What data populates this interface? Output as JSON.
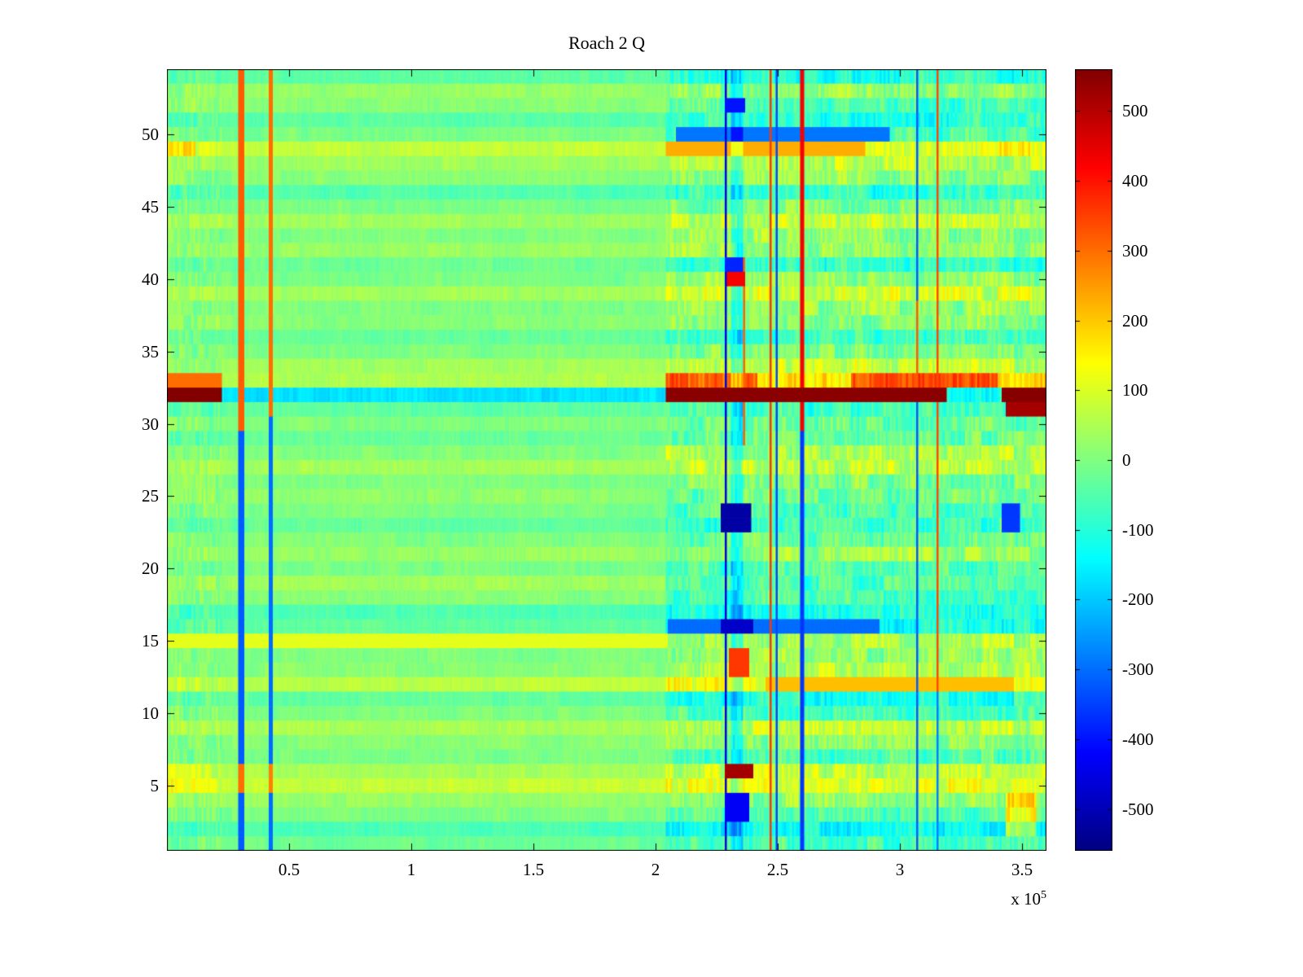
{
  "chart_data": {
    "type": "heatmap",
    "title": "Roach 2 Q",
    "colormap": "jet",
    "clim": [
      -560,
      560
    ],
    "x_range": [
      0,
      3.6
    ],
    "y_range": [
      0.5,
      54.5
    ],
    "x_units_multiplier": "1e5",
    "x_offset": {
      "prefix": "x 10",
      "exponent": "5"
    },
    "x_tick_labels": [
      "0.5",
      "1",
      "1.5",
      "2",
      "2.5",
      "3",
      "3.5"
    ],
    "x_tick_values": [
      0.5,
      1,
      1.5,
      2,
      2.5,
      3,
      3.5
    ],
    "y_tick_labels": [
      "5",
      "10",
      "15",
      "20",
      "25",
      "30",
      "35",
      "40",
      "45",
      "50"
    ],
    "y_tick_values": [
      5,
      10,
      15,
      20,
      25,
      30,
      35,
      40,
      45,
      50
    ],
    "colorbar": {
      "tick_labels": [
        "500",
        "400",
        "300",
        "200",
        "100",
        "0",
        "-100",
        "-200",
        "-300",
        "-400",
        "-500"
      ],
      "tick_values": [
        500,
        400,
        300,
        200,
        100,
        0,
        -100,
        -200,
        -300,
        -400,
        -500
      ]
    },
    "rows": 54,
    "grid_cols": 432,
    "background_noise": {
      "cell": 16,
      "streak": 12
    },
    "left_edge_region": {
      "x_end": 0.225,
      "cell_noise": 40,
      "streak_noise": 20
    },
    "right_region": {
      "x_start": 2.04,
      "cell_noise": 48,
      "streak_noise": 42,
      "row_delta": [
        -40,
        -70,
        -50,
        0,
        35,
        30,
        -40,
        0,
        20,
        -55,
        -70,
        60,
        50,
        20,
        -60,
        -80,
        -50,
        -70,
        -90,
        -55,
        0,
        -20,
        -40,
        -55,
        -35,
        0,
        20,
        40,
        0,
        -20,
        -35,
        60,
        120,
        40,
        0,
        -40,
        0,
        20,
        40,
        25,
        -55,
        0,
        20,
        40,
        0,
        -40,
        0,
        30,
        60,
        -60,
        -55,
        -70,
        0,
        -55
      ]
    },
    "row_profile": [
      -20,
      -60,
      0,
      25,
      75,
      45,
      -5,
      10,
      45,
      0,
      -30,
      65,
      10,
      0,
      105,
      -35,
      -55,
      5,
      35,
      -5,
      25,
      0,
      -30,
      -5,
      20,
      0,
      40,
      5,
      -25,
      0,
      -35,
      -170,
      55,
      35,
      0,
      -30,
      10,
      0,
      40,
      -5,
      -20,
      25,
      0,
      35,
      -5,
      -50,
      10,
      35,
      75,
      -5,
      -40,
      10,
      25,
      -40
    ],
    "bands": [
      {
        "rows": [
          15,
          15
        ],
        "x": [
          0,
          2.05
        ],
        "mode": "set",
        "value": 110
      },
      {
        "rows": [
          16,
          16
        ],
        "x": [
          2.05,
          2.92
        ],
        "mode": "set",
        "value": -300
      },
      {
        "rows": [
          12,
          12
        ],
        "x": [
          2.45,
          3.47
        ],
        "mode": "set",
        "value": 210
      },
      {
        "rows": [
          49,
          49
        ],
        "x": [
          2.04,
          2.86
        ],
        "mode": "set",
        "value": 230
      },
      {
        "rows": [
          50,
          50
        ],
        "x": [
          2.08,
          2.96
        ],
        "mode": "set",
        "value": -290
      },
      {
        "rows": [
          33,
          33
        ],
        "x": [
          0,
          0.225
        ],
        "mode": "set",
        "value": 300
      },
      {
        "rows": [
          33,
          33
        ],
        "x": [
          2.04,
          2.42
        ],
        "mode": "add",
        "value": 150
      },
      {
        "rows": [
          33,
          33
        ],
        "x": [
          2.8,
          3.4
        ],
        "mode": "add",
        "value": 170
      },
      {
        "rows": [
          5,
          6
        ],
        "x": [
          0,
          0.2
        ],
        "mode": "add",
        "value": 55
      },
      {
        "rows": [
          49,
          49
        ],
        "x": [
          0,
          0.12
        ],
        "mode": "add",
        "value": 90
      },
      {
        "rows": [
          2,
          4
        ],
        "x": [
          3.43,
          3.56
        ],
        "mode": "add",
        "value": 190
      }
    ],
    "stripes": [
      {
        "x": 0.305,
        "w": 0.02,
        "rows": [
          30,
          54
        ],
        "mode": "set",
        "value": 320
      },
      {
        "x": 0.305,
        "w": 0.02,
        "rows": [
          1,
          29
        ],
        "mode": "set",
        "value": -320
      },
      {
        "x": 0.305,
        "w": 0.02,
        "rows": [
          5,
          6
        ],
        "mode": "set",
        "value": 300
      },
      {
        "x": 0.425,
        "w": 0.016,
        "rows": [
          31,
          54
        ],
        "mode": "set",
        "value": 300
      },
      {
        "x": 0.425,
        "w": 0.016,
        "rows": [
          1,
          30
        ],
        "mode": "set",
        "value": -300
      },
      {
        "x": 0.425,
        "w": 0.016,
        "rows": [
          5,
          6
        ],
        "mode": "set",
        "value": 280
      },
      {
        "x": 2.285,
        "w": 0.009,
        "rows": [
          1,
          54
        ],
        "mode": "set",
        "value": -460
      },
      {
        "x": 2.335,
        "w": 0.05,
        "rows": [
          1,
          54
        ],
        "mode": "add",
        "value": -110
      },
      {
        "x": 2.365,
        "w": 0.01,
        "rows": [
          29,
          41
        ],
        "mode": "set",
        "value": 310
      },
      {
        "x": 2.47,
        "w": 0.011,
        "rows": [
          1,
          54
        ],
        "mode": "set",
        "value": 360
      },
      {
        "x": 2.495,
        "w": 0.009,
        "rows": [
          1,
          54
        ],
        "mode": "set",
        "value": -340
      },
      {
        "x": 2.6,
        "w": 0.013,
        "rows": [
          30,
          54
        ],
        "mode": "set",
        "value": 430
      },
      {
        "x": 2.6,
        "w": 0.013,
        "rows": [
          1,
          29
        ],
        "mode": "set",
        "value": -360
      },
      {
        "x": 3.07,
        "w": 0.011,
        "rows": [
          1,
          54
        ],
        "mode": "set",
        "value": -320
      },
      {
        "x": 3.07,
        "w": 0.011,
        "rows": [
          33,
          38
        ],
        "mode": "set",
        "value": 320
      },
      {
        "x": 3.155,
        "w": 0.013,
        "rows": [
          12,
          54
        ],
        "mode": "set",
        "value": 340
      },
      {
        "x": 3.155,
        "w": 0.013,
        "rows": [
          1,
          11
        ],
        "mode": "set",
        "value": -280
      }
    ],
    "overlays": [
      {
        "rows": [
          32,
          32
        ],
        "x": [
          0,
          0.225
        ],
        "mode": "set",
        "value": 556
      },
      {
        "rows": [
          32,
          32
        ],
        "x": [
          2.04,
          3.19
        ],
        "mode": "set",
        "value": 548
      },
      {
        "rows": [
          32,
          32
        ],
        "x": [
          3.42,
          3.6
        ],
        "mode": "set",
        "value": 552
      },
      {
        "rows": [
          31,
          31
        ],
        "x": [
          3.43,
          3.6
        ],
        "mode": "set",
        "value": 520
      },
      {
        "rows": [
          23,
          24
        ],
        "x": [
          2.27,
          2.39
        ],
        "mode": "set",
        "value": -520
      },
      {
        "rows": [
          16,
          16
        ],
        "x": [
          2.27,
          2.4
        ],
        "mode": "set",
        "value": -480
      },
      {
        "rows": [
          6,
          6
        ],
        "x": [
          2.28,
          2.4
        ],
        "mode": "set",
        "value": 520
      },
      {
        "rows": [
          13,
          14
        ],
        "x": [
          2.3,
          2.38
        ],
        "mode": "set",
        "value": 360
      },
      {
        "rows": [
          3,
          4
        ],
        "x": [
          2.28,
          2.38
        ],
        "mode": "set",
        "value": -430
      },
      {
        "rows": [
          41,
          41
        ],
        "x": [
          2.28,
          2.36
        ],
        "mode": "set",
        "value": -380
      },
      {
        "rows": [
          40,
          40
        ],
        "x": [
          2.29,
          2.37
        ],
        "mode": "set",
        "value": 430
      },
      {
        "rows": [
          52,
          52
        ],
        "x": [
          2.28,
          2.37
        ],
        "mode": "set",
        "value": -400
      },
      {
        "rows": [
          23,
          24
        ],
        "x": [
          3.42,
          3.49
        ],
        "mode": "set",
        "value": -360
      }
    ]
  }
}
